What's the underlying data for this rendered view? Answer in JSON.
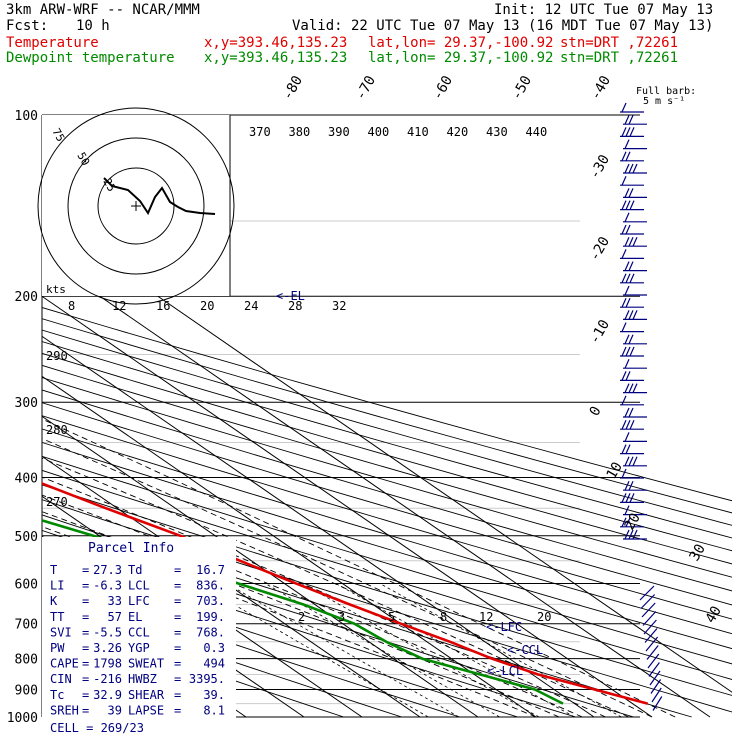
{
  "header": {
    "model": "3km ARW-WRF -- NCAR/MMM",
    "init": "Init: 12 UTC Tue 07 May 13",
    "fcst_label": "Fcst:",
    "fcst_value": "10 h",
    "valid": "Valid: 22 UTC Tue 07 May 13 (16 MDT Tue 07 May 13)"
  },
  "legend": [
    {
      "name": "Temperature",
      "xy": "x,y=393.46,135.23",
      "latlon": "lat,lon= 29.37,-100.92",
      "stn": "stn=DRT ,72261",
      "color": "#e00000"
    },
    {
      "name": "Dewpoint temperature",
      "xy": "x,y=393.46,135.23",
      "latlon": "lat,lon= 29.37,-100.92",
      "stn": "stn=DRT ,72261",
      "color": "#008a00"
    }
  ],
  "barb_legend": {
    "line1": "Full barb:",
    "line2": "5 m s⁻¹"
  },
  "parcel_info": {
    "title": "Parcel Info",
    "rows": [
      {
        "l": "T",
        "lv": "27.3",
        "r": "Td",
        "rv": "16.7"
      },
      {
        "l": "LI",
        "lv": "-6.3",
        "r": "LCL",
        "rv": "836."
      },
      {
        "l": "K",
        "lv": "33",
        "r": "LFC",
        "rv": "703."
      },
      {
        "l": "TT",
        "lv": "57",
        "r": "EL",
        "rv": "199."
      },
      {
        "l": "SVI",
        "lv": "-5.5",
        "r": "CCL",
        "rv": "768."
      },
      {
        "l": "PW",
        "lv": "3.26",
        "r": "YGP",
        "rv": "0.3"
      },
      {
        "l": "CAPE",
        "lv": "1798",
        "r": "SWEAT",
        "rv": "494"
      },
      {
        "l": "CIN",
        "lv": "-216",
        "r": "HWBZ",
        "rv": "3395."
      },
      {
        "l": "Tc",
        "lv": "32.9",
        "r": "SHEAR",
        "rv": "39."
      },
      {
        "l": "SREH",
        "lv": "39",
        "r": "LAPSE",
        "rv": "8.1"
      }
    ],
    "cell": "CELL = 269/23"
  },
  "chart_data": {
    "type": "line",
    "chart_kind": "Skew-T log-P sounding",
    "pressure_levels": [
      100,
      200,
      300,
      400,
      500,
      600,
      700,
      800,
      900,
      1000
    ],
    "isotherm_labels": [
      "-80",
      "-70",
      "-60",
      "-50",
      "-40",
      "-30",
      "-20",
      "-10",
      "0",
      "10",
      "20",
      "30",
      "40"
    ],
    "theta_labels": [
      "370",
      "380",
      "390",
      "400",
      "410",
      "420",
      "430",
      "440"
    ],
    "theta_side_labels": [
      "290",
      "280",
      "270"
    ],
    "mixing_ratio_labels": [
      "2",
      "3",
      "5",
      "8",
      "12",
      "20"
    ],
    "hodograph": {
      "kts_label": "kts",
      "ring_labels": [
        "25",
        "50",
        "75"
      ],
      "speed_axis": [
        "8",
        "12",
        "16",
        "20",
        "24",
        "28",
        "32"
      ]
    },
    "parcel_markers": [
      "<-EL",
      "<-LFC",
      "<-CCL",
      "<-LCL"
    ],
    "series": [
      {
        "name": "Temperature",
        "color": "#e00000",
        "p": [
          950,
          900,
          850,
          800,
          750,
          700,
          650,
          600,
          550,
          500,
          450,
          400,
          350,
          300,
          250,
          200,
          175,
          150,
          125,
          100
        ],
        "t": [
          32.6,
          27.0,
          21.0,
          17.0,
          14.0,
          10.0,
          6.0,
          2.0,
          -2.0,
          -6.0,
          -12.0,
          -18.0,
          -25.0,
          -33.0,
          -43.0,
          -54.0,
          -57.0,
          -58.0,
          -60.0,
          -64.0
        ]
      },
      {
        "name": "Dewpoint temperature",
        "color": "#008a00",
        "p": [
          950,
          900,
          850,
          800,
          750,
          700,
          650,
          600,
          550,
          500,
          450,
          400,
          370,
          350,
          300,
          250,
          200,
          150,
          125,
          100
        ],
        "td": [
          18.0,
          16.7,
          11.0,
          5.0,
          3.0,
          2.0,
          -2.0,
          -8.0,
          -14.0,
          -21.0,
          -30.0,
          -38.0,
          -37.0,
          -36.0,
          -45.0,
          -58.0,
          -72.0,
          -83.0,
          -88.0,
          -90.0
        ]
      }
    ]
  }
}
